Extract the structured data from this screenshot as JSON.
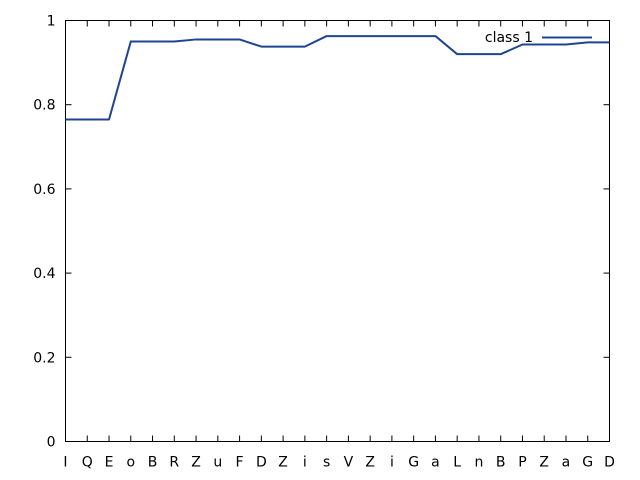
{
  "chart_data": {
    "type": "line",
    "categories": [
      "I",
      "Q",
      "E",
      "o",
      "B",
      "R",
      "Z",
      "u",
      "F",
      "D",
      "Z",
      "i",
      "s",
      "V",
      "Z",
      "i",
      "G",
      "a",
      "L",
      "n",
      "B",
      "P",
      "Z",
      "a",
      "G",
      "D"
    ],
    "series": [
      {
        "name": "class 1",
        "color": "#1f4590",
        "values": [
          0.765,
          0.765,
          0.765,
          0.95,
          0.95,
          0.95,
          0.955,
          0.955,
          0.955,
          0.938,
          0.938,
          0.938,
          0.963,
          0.963,
          0.963,
          0.963,
          0.963,
          0.963,
          0.92,
          0.92,
          0.92,
          0.943,
          0.943,
          0.943,
          0.948,
          0.948
        ]
      }
    ],
    "yticks": [
      "0",
      "0.2",
      "0.4",
      "0.6",
      "0.8",
      "1"
    ],
    "ytick_values": [
      0,
      0.2,
      0.4,
      0.6,
      0.8,
      1
    ],
    "ylim": [
      0,
      1
    ],
    "grid": false,
    "legend_position": "top-right"
  }
}
